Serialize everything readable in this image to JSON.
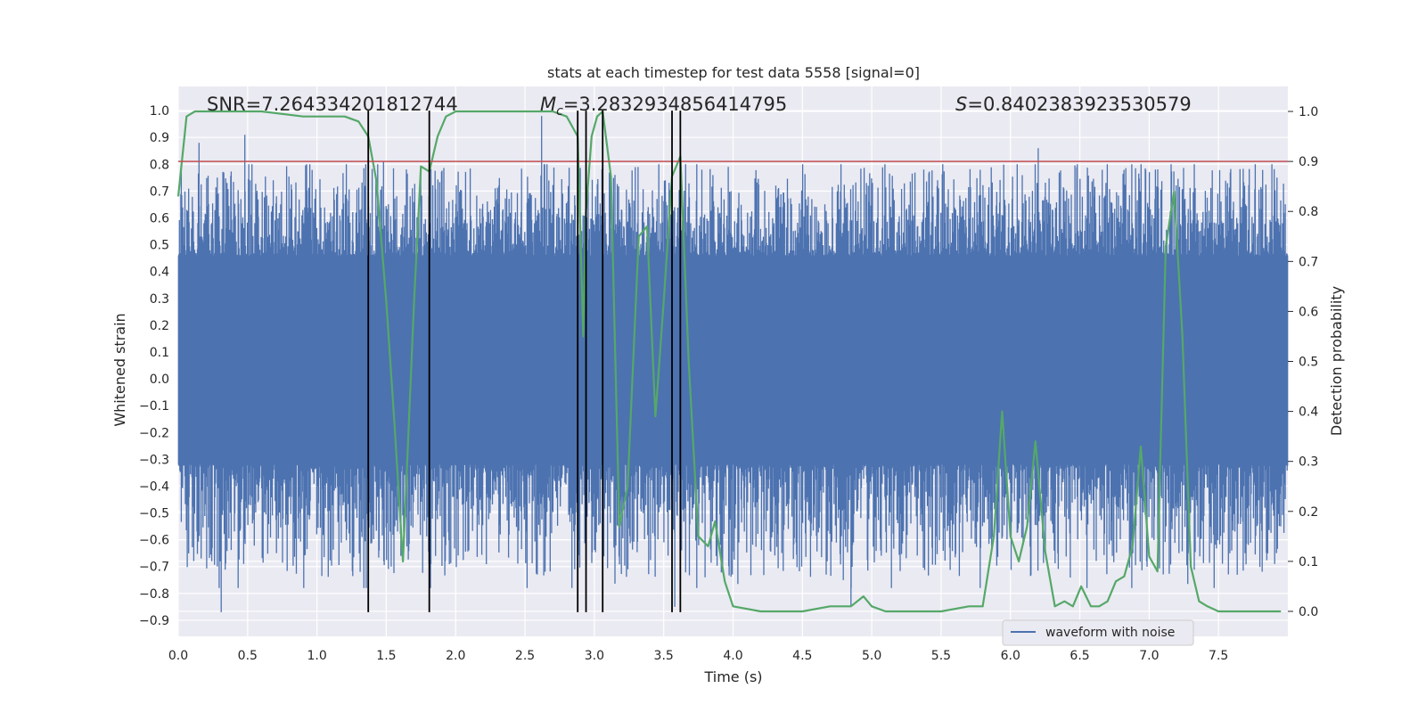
{
  "chart_data": {
    "type": "line",
    "title": "stats at each timestep for test data 5558 [signal=0]",
    "xlabel": "Time (s)",
    "ylabel_left": "Whitened strain",
    "ylabel_right": "Detection probability",
    "xlim": [
      0.0,
      8.0
    ],
    "ylim_left": [
      -0.96,
      1.09
    ],
    "ylim_right": [
      -0.05,
      1.05
    ],
    "x_ticks": [
      0.0,
      0.5,
      1.0,
      1.5,
      2.0,
      2.5,
      3.0,
      3.5,
      4.0,
      4.5,
      5.0,
      5.5,
      6.0,
      6.5,
      7.0,
      7.5
    ],
    "x_tick_labels": [
      "0.0",
      "0.5",
      "1.0",
      "1.5",
      "2.0",
      "2.5",
      "3.0",
      "3.5",
      "4.0",
      "4.5",
      "5.0",
      "5.5",
      "6.0",
      "6.5",
      "7.0",
      "7.5"
    ],
    "y_left_ticks": [
      1.0,
      0.9,
      0.8,
      0.7,
      0.6,
      0.5,
      0.4,
      0.3,
      0.2,
      0.1,
      0.0,
      -0.1,
      -0.2,
      -0.3,
      -0.4,
      -0.5,
      -0.6,
      -0.7,
      -0.8,
      -0.9
    ],
    "y_left_tick_labels": [
      "1.0",
      "0.9",
      "0.8",
      "0.7",
      "0.6",
      "0.5",
      "0.4",
      "0.3",
      "0.2",
      "0.1",
      "0.0",
      "−0.1",
      "−0.2",
      "−0.3",
      "−0.4",
      "−0.5",
      "−0.6",
      "−0.7",
      "−0.8",
      "−0.9"
    ],
    "y_right_ticks": [
      1.0,
      0.9,
      0.8,
      0.7,
      0.6,
      0.5,
      0.4,
      0.3,
      0.2,
      0.1,
      0.0
    ],
    "y_right_tick_labels": [
      "1.0",
      "0.9",
      "0.8",
      "0.7",
      "0.6",
      "0.5",
      "0.4",
      "0.3",
      "0.2",
      "0.1",
      "0.0"
    ],
    "grid": true,
    "annotations": {
      "snr": "SNR=7.264334201812744",
      "mc_symbol": "M",
      "mc_sub": "c",
      "mc_value": "=3.2832934856414795",
      "s_symbol": "S",
      "s_value": "=0.8402383923530579"
    },
    "threshold_y_right": 0.9,
    "vertical_lines_x": [
      1.37,
      1.81,
      2.88,
      2.94,
      3.06,
      3.56,
      3.62
    ],
    "vertical_line_y_range": [
      -0.87,
      1.0
    ],
    "legend": {
      "entries": [
        "waveform with noise"
      ],
      "position": "lower-right"
    },
    "series": [
      {
        "name": "waveform with noise",
        "color": "#4c72b0",
        "axis": "left",
        "sample_count": 2400,
        "core_band": [
          -0.3,
          0.44
        ],
        "envelope_pos_typical": 0.55,
        "envelope_neg_typical": -0.52,
        "peaks": [
          {
            "x": 0.15,
            "y": 0.88
          },
          {
            "x": 0.48,
            "y": 0.91
          },
          {
            "x": 0.31,
            "y": -0.87
          },
          {
            "x": 1.48,
            "y": 0.81
          },
          {
            "x": 2.62,
            "y": 0.98
          },
          {
            "x": 3.58,
            "y": -0.85
          },
          {
            "x": 4.85,
            "y": -0.85
          },
          {
            "x": 6.2,
            "y": 0.86
          }
        ]
      },
      {
        "name": "detection probability",
        "color": "#55a868",
        "axis": "right",
        "x": [
          0.0,
          0.06,
          0.12,
          0.3,
          0.6,
          0.9,
          1.0,
          1.2,
          1.3,
          1.37,
          1.43,
          1.5,
          1.56,
          1.62,
          1.7,
          1.75,
          1.81,
          1.87,
          1.93,
          2.0,
          2.5,
          2.7,
          2.8,
          2.88,
          2.92,
          2.94,
          2.98,
          3.02,
          3.06,
          3.12,
          3.18,
          3.24,
          3.32,
          3.38,
          3.44,
          3.5,
          3.56,
          3.62,
          3.68,
          3.75,
          3.82,
          3.87,
          3.94,
          4.0,
          4.2,
          4.5,
          4.7,
          4.85,
          4.94,
          5.0,
          5.1,
          5.5,
          5.7,
          5.8,
          5.88,
          5.94,
          6.0,
          6.06,
          6.12,
          6.18,
          6.25,
          6.32,
          6.39,
          6.45,
          6.51,
          6.58,
          6.64,
          6.7,
          6.76,
          6.82,
          6.88,
          6.94,
          7.0,
          7.06,
          7.12,
          7.18,
          7.24,
          7.3,
          7.36,
          7.42,
          7.5,
          7.6,
          7.8,
          7.95
        ],
        "y": [
          0.83,
          0.99,
          1.0,
          1.0,
          1.0,
          0.99,
          0.99,
          0.99,
          0.98,
          0.95,
          0.86,
          0.62,
          0.37,
          0.1,
          0.62,
          0.89,
          0.88,
          0.95,
          0.99,
          1.0,
          1.0,
          1.0,
          0.99,
          0.95,
          0.55,
          0.8,
          0.95,
          0.99,
          1.0,
          0.87,
          0.17,
          0.25,
          0.75,
          0.77,
          0.39,
          0.62,
          0.87,
          0.91,
          0.5,
          0.15,
          0.13,
          0.18,
          0.06,
          0.01,
          0.0,
          0.0,
          0.01,
          0.01,
          0.03,
          0.01,
          0.0,
          0.0,
          0.01,
          0.01,
          0.15,
          0.4,
          0.15,
          0.1,
          0.17,
          0.34,
          0.12,
          0.01,
          0.02,
          0.01,
          0.05,
          0.01,
          0.01,
          0.02,
          0.06,
          0.07,
          0.13,
          0.33,
          0.11,
          0.08,
          0.73,
          0.84,
          0.55,
          0.09,
          0.02,
          0.01,
          0.0,
          0.0,
          0.0,
          0.0
        ]
      }
    ]
  }
}
